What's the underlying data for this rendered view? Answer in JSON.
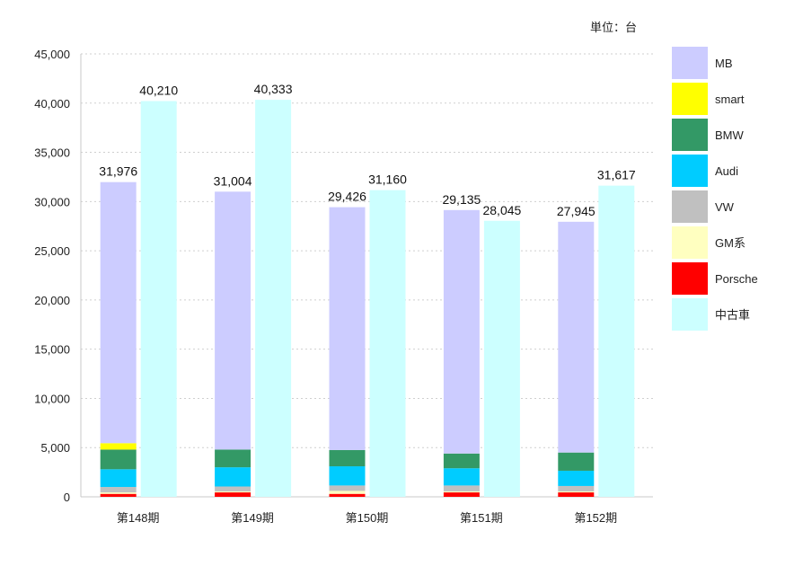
{
  "chart_data": {
    "type": "bar",
    "stacked": true,
    "unit_note": "単位：台",
    "categories": [
      "第148期",
      "第149期",
      "第150期",
      "第151期",
      "第152期"
    ],
    "series": [
      {
        "name": "MB",
        "color": "#ccccff",
        "values": [
          26526,
          26204,
          24676,
          24735,
          23445
        ]
      },
      {
        "name": "smart",
        "color": "#ffff00",
        "values": [
          650,
          0,
          0,
          0,
          0
        ]
      },
      {
        "name": "BMW",
        "color": "#339966",
        "values": [
          2000,
          1800,
          1650,
          1500,
          1850
        ]
      },
      {
        "name": "Audi",
        "color": "#00ccff",
        "values": [
          1800,
          1950,
          1950,
          1750,
          1550
        ]
      },
      {
        "name": "VW",
        "color": "#c0c0c0",
        "values": [
          550,
          500,
          550,
          600,
          550
        ]
      },
      {
        "name": "GM系",
        "color": "#ffffc0",
        "values": [
          150,
          100,
          300,
          100,
          100
        ]
      },
      {
        "name": "Porsche",
        "color": "#ff0000",
        "values": [
          300,
          450,
          300,
          450,
          450
        ]
      }
    ],
    "used_series": {
      "name": "中古車",
      "color": "#ccffff",
      "values": [
        40210,
        40333,
        31160,
        28045,
        31617
      ]
    },
    "total_labels": [
      "31,976",
      "31,004",
      "29,426",
      "29,135",
      "27,945"
    ],
    "used_labels": [
      "40,210",
      "40,333",
      "31,160",
      "28,045",
      "31,617"
    ],
    "ylim": [
      0,
      45000
    ],
    "yticks": [
      0,
      5000,
      10000,
      15000,
      20000,
      25000,
      30000,
      35000,
      40000,
      45000
    ],
    "ytick_labels": [
      "0",
      "5,000",
      "10,000",
      "15,000",
      "20,000",
      "25,000",
      "30,000",
      "35,000",
      "40,000",
      "45,000"
    ],
    "grid": true,
    "legend": "right"
  }
}
